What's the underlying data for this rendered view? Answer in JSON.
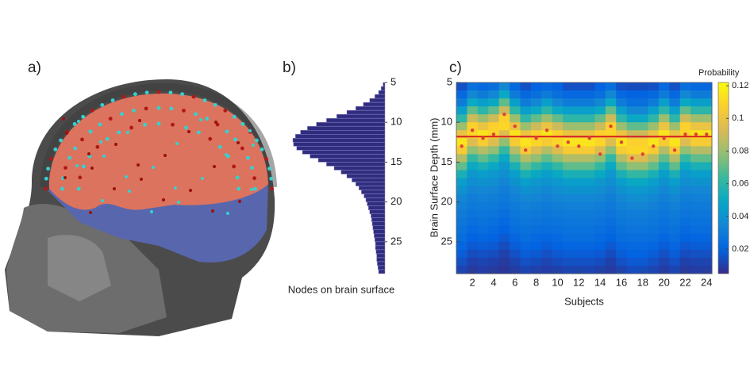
{
  "figure": {
    "panel_labels": [
      "a)",
      "b)",
      "c)"
    ]
  },
  "chart_data": [
    {
      "type": "histogram",
      "orientation": "horizontal",
      "xlabel": "Nodes on brain surface",
      "color": "#302c80",
      "bins": [
        5,
        5.5,
        6,
        6.5,
        7,
        7.5,
        8,
        8.5,
        9,
        9.5,
        10,
        10.5,
        11,
        11.5,
        12,
        12.5,
        13,
        13.5,
        14,
        14.5,
        15,
        15.5,
        16,
        16.5,
        17,
        17.5,
        18,
        18.5,
        19,
        19.5,
        20,
        20.5,
        21,
        21.5,
        22,
        22.5,
        23,
        23.5,
        24,
        24.5,
        25,
        25.5,
        26,
        26.5,
        27,
        27.5,
        28,
        28.5,
        29
      ],
      "values": [
        3,
        6,
        10,
        16,
        24,
        34,
        46,
        60,
        76,
        92,
        108,
        122,
        133,
        141,
        145,
        144,
        139,
        130,
        118,
        105,
        92,
        80,
        69,
        60,
        52,
        46,
        41,
        37,
        33,
        30,
        28,
        26,
        24,
        22,
        21,
        20,
        19,
        18,
        17,
        16,
        15,
        15,
        14,
        13,
        13,
        12,
        11,
        10
      ],
      "xlim": [
        0,
        150
      ],
      "ylim": [
        5,
        29
      ],
      "yticks": [
        5,
        10,
        15,
        20,
        25
      ],
      "y_inverted": true
    },
    {
      "type": "heatmap",
      "xlabel": "Subjects",
      "ylabel": "Brain Surface Depth (mm)",
      "colorbar_label": "Probability",
      "colormap": "parula",
      "x": [
        1,
        2,
        3,
        4,
        5,
        6,
        7,
        8,
        9,
        10,
        11,
        12,
        13,
        14,
        15,
        16,
        17,
        18,
        19,
        20,
        21,
        22,
        23,
        24
      ],
      "y": [
        5.5,
        6.5,
        7.5,
        8.5,
        9.5,
        10.5,
        11.5,
        12.5,
        13.5,
        14.5,
        15.5,
        16.5,
        17.5,
        18.5,
        19.5,
        20.5,
        21.5,
        22.5,
        23.5,
        24.5,
        25.5,
        26.5,
        27.5,
        28.5
      ],
      "z": [
        [
          0.015,
          0.022,
          0.03,
          0.045,
          0.06,
          0.08,
          0.1,
          0.115,
          0.105,
          0.085,
          0.07,
          0.055,
          0.045,
          0.04,
          0.035,
          0.032,
          0.03,
          0.028,
          0.026,
          0.024,
          0.021,
          0.018,
          0.015,
          0.012
        ],
        [
          0.025,
          0.035,
          0.05,
          0.07,
          0.09,
          0.108,
          0.11,
          0.095,
          0.078,
          0.062,
          0.05,
          0.042,
          0.038,
          0.034,
          0.031,
          0.029,
          0.027,
          0.025,
          0.022,
          0.02,
          0.017,
          0.014,
          0.011,
          0.009
        ],
        [
          0.022,
          0.03,
          0.045,
          0.06,
          0.08,
          0.1,
          0.115,
          0.105,
          0.085,
          0.07,
          0.055,
          0.045,
          0.04,
          0.035,
          0.032,
          0.03,
          0.028,
          0.026,
          0.024,
          0.021,
          0.018,
          0.015,
          0.012,
          0.01
        ],
        [
          0.025,
          0.035,
          0.05,
          0.07,
          0.09,
          0.108,
          0.11,
          0.095,
          0.078,
          0.062,
          0.05,
          0.042,
          0.038,
          0.034,
          0.031,
          0.029,
          0.027,
          0.025,
          0.022,
          0.02,
          0.017,
          0.014,
          0.011,
          0.009
        ],
        [
          0.035,
          0.05,
          0.07,
          0.09,
          0.108,
          0.11,
          0.095,
          0.078,
          0.062,
          0.05,
          0.042,
          0.038,
          0.034,
          0.031,
          0.029,
          0.027,
          0.025,
          0.022,
          0.02,
          0.017,
          0.014,
          0.011,
          0.009,
          0.008
        ],
        [
          0.022,
          0.03,
          0.045,
          0.06,
          0.08,
          0.1,
          0.115,
          0.105,
          0.085,
          0.07,
          0.055,
          0.045,
          0.04,
          0.035,
          0.032,
          0.03,
          0.028,
          0.026,
          0.024,
          0.021,
          0.018,
          0.015,
          0.012,
          0.01
        ],
        [
          0.015,
          0.022,
          0.03,
          0.045,
          0.06,
          0.08,
          0.1,
          0.115,
          0.105,
          0.085,
          0.07,
          0.055,
          0.045,
          0.04,
          0.035,
          0.032,
          0.03,
          0.028,
          0.026,
          0.024,
          0.021,
          0.018,
          0.015,
          0.012
        ],
        [
          0.02,
          0.025,
          0.035,
          0.05,
          0.07,
          0.09,
          0.108,
          0.11,
          0.095,
          0.078,
          0.062,
          0.05,
          0.042,
          0.038,
          0.034,
          0.031,
          0.029,
          0.027,
          0.025,
          0.022,
          0.02,
          0.017,
          0.014,
          0.011
        ],
        [
          0.022,
          0.03,
          0.045,
          0.06,
          0.08,
          0.1,
          0.115,
          0.105,
          0.085,
          0.07,
          0.055,
          0.045,
          0.04,
          0.035,
          0.032,
          0.03,
          0.028,
          0.026,
          0.024,
          0.021,
          0.018,
          0.015,
          0.012,
          0.01
        ],
        [
          0.02,
          0.025,
          0.035,
          0.05,
          0.07,
          0.09,
          0.108,
          0.11,
          0.095,
          0.078,
          0.062,
          0.05,
          0.042,
          0.038,
          0.034,
          0.031,
          0.029,
          0.027,
          0.025,
          0.022,
          0.02,
          0.017,
          0.014,
          0.011
        ],
        [
          0.015,
          0.022,
          0.03,
          0.045,
          0.06,
          0.08,
          0.1,
          0.115,
          0.105,
          0.085,
          0.07,
          0.055,
          0.045,
          0.04,
          0.035,
          0.032,
          0.03,
          0.028,
          0.026,
          0.024,
          0.021,
          0.018,
          0.015,
          0.012
        ],
        [
          0.015,
          0.022,
          0.03,
          0.045,
          0.06,
          0.08,
          0.1,
          0.115,
          0.105,
          0.085,
          0.07,
          0.055,
          0.045,
          0.04,
          0.035,
          0.032,
          0.03,
          0.028,
          0.026,
          0.024,
          0.021,
          0.018,
          0.015,
          0.012
        ],
        [
          0.015,
          0.022,
          0.03,
          0.045,
          0.06,
          0.08,
          0.1,
          0.115,
          0.105,
          0.085,
          0.07,
          0.055,
          0.045,
          0.04,
          0.035,
          0.032,
          0.03,
          0.028,
          0.026,
          0.024,
          0.021,
          0.018,
          0.015,
          0.012
        ],
        [
          0.02,
          0.025,
          0.035,
          0.05,
          0.07,
          0.09,
          0.108,
          0.11,
          0.095,
          0.078,
          0.062,
          0.05,
          0.042,
          0.038,
          0.034,
          0.031,
          0.029,
          0.027,
          0.025,
          0.022,
          0.02,
          0.017,
          0.014,
          0.011
        ],
        [
          0.025,
          0.035,
          0.05,
          0.07,
          0.09,
          0.108,
          0.11,
          0.095,
          0.078,
          0.062,
          0.05,
          0.042,
          0.038,
          0.034,
          0.031,
          0.029,
          0.027,
          0.025,
          0.022,
          0.02,
          0.017,
          0.014,
          0.011,
          0.009
        ],
        [
          0.015,
          0.022,
          0.03,
          0.045,
          0.06,
          0.08,
          0.1,
          0.115,
          0.105,
          0.085,
          0.07,
          0.055,
          0.045,
          0.04,
          0.035,
          0.032,
          0.03,
          0.028,
          0.026,
          0.024,
          0.021,
          0.018,
          0.015,
          0.012
        ],
        [
          0.014,
          0.02,
          0.025,
          0.035,
          0.05,
          0.07,
          0.09,
          0.108,
          0.11,
          0.095,
          0.078,
          0.062,
          0.05,
          0.042,
          0.038,
          0.034,
          0.031,
          0.029,
          0.027,
          0.025,
          0.022,
          0.02,
          0.017,
          0.014
        ],
        [
          0.014,
          0.02,
          0.025,
          0.035,
          0.05,
          0.07,
          0.09,
          0.108,
          0.11,
          0.095,
          0.078,
          0.062,
          0.05,
          0.042,
          0.038,
          0.034,
          0.031,
          0.029,
          0.027,
          0.025,
          0.022,
          0.02,
          0.017,
          0.014
        ],
        [
          0.015,
          0.022,
          0.03,
          0.045,
          0.06,
          0.08,
          0.1,
          0.115,
          0.105,
          0.085,
          0.07,
          0.055,
          0.045,
          0.04,
          0.035,
          0.032,
          0.03,
          0.028,
          0.026,
          0.024,
          0.021,
          0.018,
          0.015,
          0.012
        ],
        [
          0.022,
          0.03,
          0.045,
          0.06,
          0.08,
          0.1,
          0.115,
          0.105,
          0.085,
          0.07,
          0.055,
          0.045,
          0.04,
          0.035,
          0.032,
          0.03,
          0.028,
          0.026,
          0.024,
          0.021,
          0.018,
          0.015,
          0.012,
          0.01
        ],
        [
          0.015,
          0.022,
          0.03,
          0.045,
          0.06,
          0.08,
          0.1,
          0.115,
          0.105,
          0.085,
          0.07,
          0.055,
          0.045,
          0.04,
          0.035,
          0.032,
          0.03,
          0.028,
          0.026,
          0.024,
          0.021,
          0.018,
          0.015,
          0.012
        ],
        [
          0.025,
          0.035,
          0.05,
          0.07,
          0.09,
          0.108,
          0.11,
          0.095,
          0.078,
          0.062,
          0.05,
          0.042,
          0.038,
          0.034,
          0.031,
          0.029,
          0.027,
          0.025,
          0.022,
          0.02,
          0.017,
          0.014,
          0.011,
          0.009
        ],
        [
          0.022,
          0.03,
          0.045,
          0.06,
          0.08,
          0.1,
          0.115,
          0.105,
          0.085,
          0.07,
          0.055,
          0.045,
          0.04,
          0.035,
          0.032,
          0.03,
          0.028,
          0.026,
          0.024,
          0.021,
          0.018,
          0.015,
          0.012,
          0.01
        ],
        [
          0.022,
          0.03,
          0.045,
          0.06,
          0.08,
          0.1,
          0.115,
          0.105,
          0.085,
          0.07,
          0.055,
          0.045,
          0.04,
          0.035,
          0.032,
          0.03,
          0.028,
          0.026,
          0.024,
          0.021,
          0.018,
          0.015,
          0.012,
          0.01
        ]
      ],
      "points": {
        "color": "#e0403a",
        "values": [
          13,
          11,
          12,
          11.5,
          9,
          10.5,
          13.5,
          12,
          11,
          13,
          12.5,
          13,
          12,
          14,
          10.5,
          12.5,
          14.5,
          14,
          13,
          12,
          13.5,
          11.5,
          11.5,
          11.5
        ]
      },
      "reference_line": 11.8,
      "reference_color": "#d42020",
      "xlim": [
        0.5,
        24.5
      ],
      "xticks": [
        2,
        4,
        6,
        8,
        10,
        12,
        14,
        16,
        18,
        20,
        22,
        24
      ],
      "ylim": [
        5,
        29
      ],
      "yticks": [
        5,
        10,
        15,
        20,
        25
      ],
      "y_inverted": true,
      "clim": [
        0.005,
        0.122
      ],
      "cticks": [
        0.02,
        0.04,
        0.06,
        0.08,
        0.1,
        0.12
      ]
    }
  ]
}
